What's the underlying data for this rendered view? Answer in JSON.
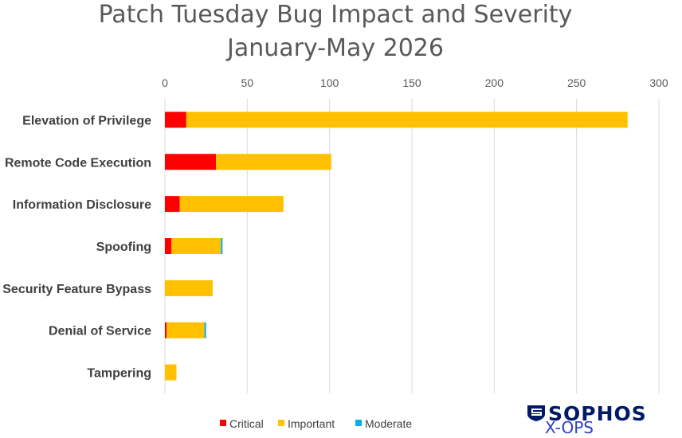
{
  "chart_data": {
    "type": "bar",
    "orientation": "horizontal",
    "stacked": true,
    "title_line1": "Patch Tuesday Bug Impact and Severity",
    "title_line2": "January-May 2026",
    "categories": [
      "Elevation of Privilege",
      "Remote Code Execution",
      "Information Disclosure",
      "Spoofing",
      "Security Feature Bypass",
      "Denial of Service",
      "Tampering"
    ],
    "series": [
      {
        "name": "Critical",
        "color": "#ff0000",
        "values": [
          13,
          31,
          9,
          4,
          0,
          1,
          0
        ]
      },
      {
        "name": "Important",
        "color": "#ffc000",
        "values": [
          268,
          70,
          63,
          30,
          29,
          23,
          7
        ]
      },
      {
        "name": "Moderate",
        "color": "#00b0f0",
        "values": [
          0,
          0,
          0,
          1,
          0,
          1,
          0
        ]
      }
    ],
    "xlim": [
      0,
      300
    ],
    "xticks": [
      "0",
      "50",
      "100",
      "150",
      "200",
      "250",
      "300"
    ],
    "x_axis_position": "top",
    "grid": true,
    "legend_position": "bottom"
  },
  "logo": {
    "brand": "SOPHOS",
    "sub": "X-OPS",
    "color": "#001a66"
  }
}
